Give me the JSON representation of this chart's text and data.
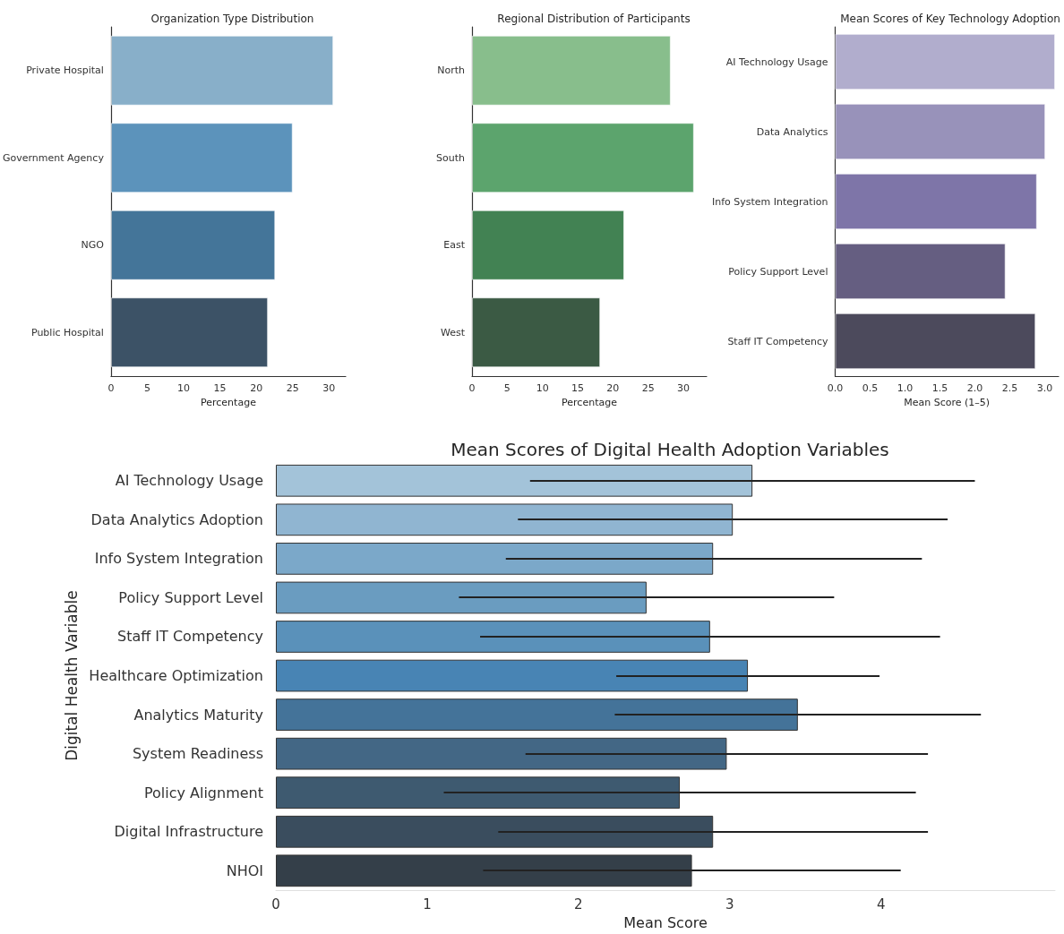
{
  "chart_data": [
    {
      "type": "bar",
      "orientation": "horizontal",
      "title": "Organization Type Distribution",
      "xlabel": "Percentage",
      "categories": [
        "Private Hospital",
        "Government Agency",
        "NGO",
        "Public Hospital"
      ],
      "values": [
        30.6,
        25.0,
        22.6,
        21.6
      ],
      "colors": [
        "#88afc9",
        "#5c93bb",
        "#447599",
        "#3c5266"
      ],
      "xlim": [
        0,
        32.3
      ],
      "xticks": [
        0,
        5,
        10,
        15,
        20,
        25,
        30
      ],
      "grid": false
    },
    {
      "type": "bar",
      "orientation": "horizontal",
      "title": "Regional Distribution of Participants",
      "xlabel": "Percentage",
      "categories": [
        "North",
        "South",
        "East",
        "West"
      ],
      "values": [
        28.2,
        31.5,
        21.6,
        18.2
      ],
      "colors": [
        "#88be8c",
        "#5ca46d",
        "#428253",
        "#3b5a44"
      ],
      "xlim": [
        0,
        33.3
      ],
      "xticks": [
        0,
        5,
        10,
        15,
        20,
        25,
        30
      ],
      "grid": false
    },
    {
      "type": "bar",
      "orientation": "horizontal",
      "title": "Mean Scores of Key Technology Adoption",
      "xlabel": "Mean Score (1–5)",
      "categories": [
        "AI Technology Usage",
        "Data Analytics",
        "Info System Integration",
        "Policy Support Level",
        "Staff IT Competency"
      ],
      "values": [
        3.15,
        3.01,
        2.89,
        2.44,
        2.87
      ],
      "colors": [
        "#b1adcd",
        "#9892ba",
        "#7e75a8",
        "#655e81",
        "#4c4a5c"
      ],
      "xlim": [
        0,
        3.2
      ],
      "xticks": [
        {
          "value": 0,
          "label": "0.0"
        },
        {
          "value": 0.5,
          "label": "0.5"
        },
        {
          "value": 1,
          "label": "1.0"
        },
        {
          "value": 1.5,
          "label": "1.5"
        },
        {
          "value": 2,
          "label": "2.0"
        },
        {
          "value": 2.5,
          "label": "2.5"
        },
        {
          "value": 3,
          "label": "3.0"
        }
      ],
      "grid": false
    },
    {
      "type": "bar",
      "orientation": "horizontal",
      "title": "Mean Scores of Digital Health Adoption Variables",
      "xlabel": "Mean Score",
      "ylabel": "Digital Health Variable",
      "categories": [
        "AI Technology Usage",
        "Data Analytics Adoption",
        "Info System Integration",
        "Policy Support Level",
        "Staff IT Competency",
        "Healthcare Optimization",
        "Analytics Maturity",
        "System Readiness",
        "Policy Alignment",
        "Digital Infrastructure",
        "NHOI"
      ],
      "values": [
        3.15,
        3.02,
        2.89,
        2.45,
        2.87,
        3.12,
        3.45,
        2.98,
        2.67,
        2.89,
        2.75
      ],
      "errors": [
        [
          1.68,
          4.62
        ],
        [
          1.6,
          4.44
        ],
        [
          1.52,
          4.27
        ],
        [
          1.21,
          3.69
        ],
        [
          1.35,
          4.39
        ],
        [
          2.25,
          3.99
        ],
        [
          2.24,
          4.66
        ],
        [
          1.65,
          4.31
        ],
        [
          1.11,
          4.23
        ],
        [
          1.47,
          4.31
        ],
        [
          1.37,
          4.13
        ]
      ],
      "colors": [
        "#a3c3d9",
        "#90b5d1",
        "#7ba8c9",
        "#6a9cc0",
        "#5a91ba",
        "#4884b4",
        "#447399",
        "#436785",
        "#3e5a70",
        "#3a4d5e",
        "#343f49"
      ],
      "xlim": [
        0,
        5.15
      ],
      "xticks": [
        0,
        1,
        2,
        3,
        4
      ],
      "grid": false
    }
  ]
}
